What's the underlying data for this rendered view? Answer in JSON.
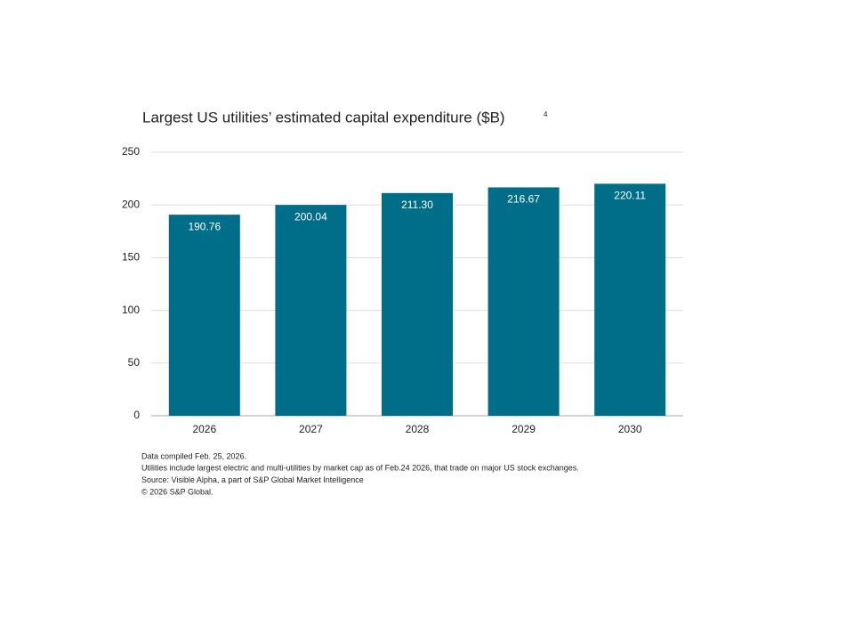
{
  "chart_data": {
    "type": "bar",
    "title": "Largest US utilities’ estimated capital expenditure ($B)",
    "title_note": "4",
    "categories": [
      "2026",
      "2027",
      "2028",
      "2029",
      "2030"
    ],
    "values": [
      190.76,
      200.04,
      211.3,
      216.67,
      220.11
    ],
    "value_labels": [
      "190.76",
      "200.04",
      "211.30",
      "216.67",
      "220.11"
    ],
    "color": "#006e89",
    "ylim": [
      0,
      250
    ],
    "yticks": [
      0,
      50,
      100,
      150,
      200,
      250
    ],
    "grid": true,
    "notes": [
      "Data compiled Feb. 25, 2026.",
      "Utilities include largest electric and multi-utilities by market cap as of Feb.24 2026, that trade on major US stock exchanges.",
      "Source: Visible Alpha, a part of S&P Global Market Intelligence",
      "© 2026 S&P Global."
    ]
  }
}
